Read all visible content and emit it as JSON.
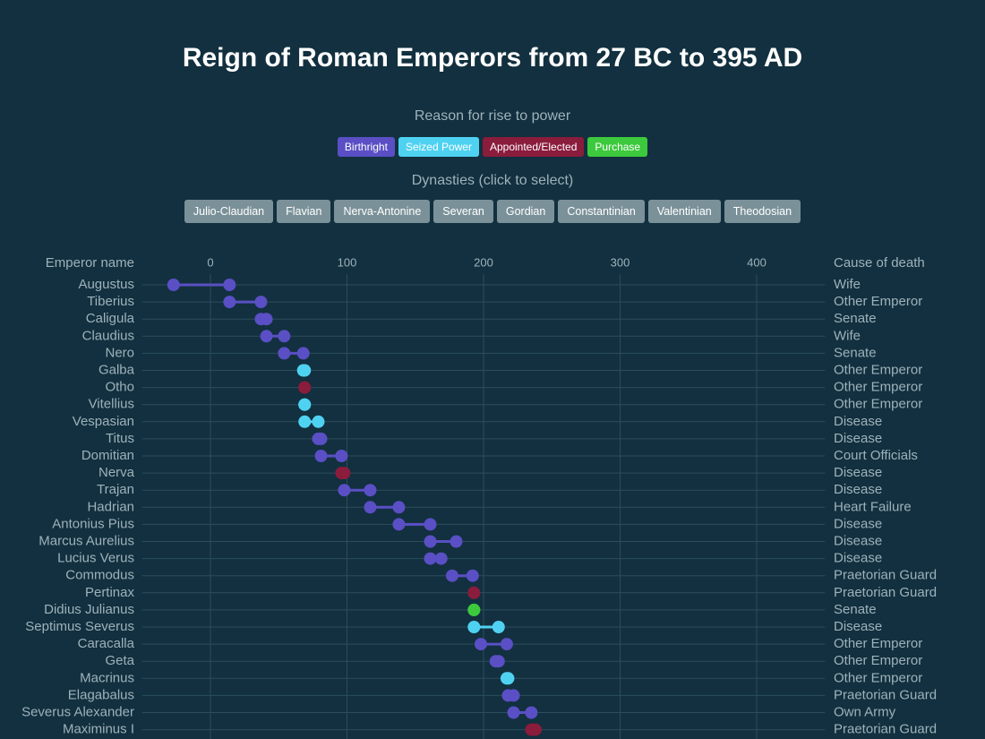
{
  "chart_data": {
    "type": "dumbbell",
    "title": "Reign of Roman Emperors from 27 BC to 395 AD",
    "legend_title": "Reason for rise to power",
    "legend": [
      {
        "name": "Birthright",
        "color": "#5a4fc4"
      },
      {
        "name": "Seized Power",
        "color": "#4fd2f2"
      },
      {
        "name": "Appointed/Elected",
        "color": "#8a1c3c"
      },
      {
        "name": "Purchase",
        "color": "#3dc93d"
      }
    ],
    "dynasties_title": "Dynasties (click to select)",
    "dynasties": [
      "Julio-Claudian",
      "Flavian",
      "Nerva-Antonine",
      "Severan",
      "Gordian",
      "Constantinian",
      "Valentinian",
      "Theodosian"
    ],
    "y_label": "Emperor name",
    "y2_label": "Cause of death",
    "categories": [
      "Augustus",
      "Tiberius",
      "Caligula",
      "Claudius",
      "Nero",
      "Galba",
      "Otho",
      "Vitellius",
      "Vespasian",
      "Titus",
      "Domitian",
      "Nerva",
      "Trajan",
      "Hadrian",
      "Antonius Pius",
      "Marcus Aurelius",
      "Lucius Verus",
      "Commodus",
      "Pertinax",
      "Didius Julianus",
      "Septimus Severus",
      "Caracalla",
      "Geta",
      "Macrinus",
      "Elagabalus",
      "Severus Alexander",
      "Maximinus I"
    ],
    "start": [
      -27,
      14,
      37,
      41,
      54,
      68,
      69,
      69,
      69,
      79,
      81,
      96,
      98,
      117,
      138,
      161,
      161,
      177,
      193,
      193,
      193,
      198,
      209,
      217,
      218,
      222,
      235
    ],
    "end": [
      14,
      37,
      41,
      54,
      68,
      69,
      69,
      69,
      79,
      81,
      96,
      98,
      117,
      138,
      161,
      180,
      169,
      192,
      193,
      193,
      211,
      217,
      211,
      218,
      222,
      235,
      238
    ],
    "colors": [
      "#5a4fc4",
      "#5a4fc4",
      "#5a4fc4",
      "#5a4fc4",
      "#5a4fc4",
      "#4fd2f2",
      "#8a1c3c",
      "#4fd2f2",
      "#4fd2f2",
      "#5a4fc4",
      "#5a4fc4",
      "#8a1c3c",
      "#5a4fc4",
      "#5a4fc4",
      "#5a4fc4",
      "#5a4fc4",
      "#5a4fc4",
      "#5a4fc4",
      "#8a1c3c",
      "#3dc93d",
      "#4fd2f2",
      "#5a4fc4",
      "#5a4fc4",
      "#4fd2f2",
      "#5a4fc4",
      "#5a4fc4",
      "#8a1c3c"
    ],
    "causes": [
      "Wife",
      "Other Emperor",
      "Senate",
      "Wife",
      "Senate",
      "Other Emperor",
      "Other Emperor",
      "Other Emperor",
      "Disease",
      "Disease",
      "Court Officials",
      "Disease",
      "Disease",
      "Heart Failure",
      "Disease",
      "Disease",
      "Disease",
      "Praetorian Guard",
      "Praetorian Guard",
      "Senate",
      "Disease",
      "Other Emperor",
      "Other Emperor",
      "Other Emperor",
      "Praetorian Guard",
      "Own Army",
      "Praetorian Guard"
    ],
    "xlim": [
      -50,
      450
    ],
    "xticks": [
      0,
      100,
      200,
      300,
      400
    ],
    "grid": true
  }
}
